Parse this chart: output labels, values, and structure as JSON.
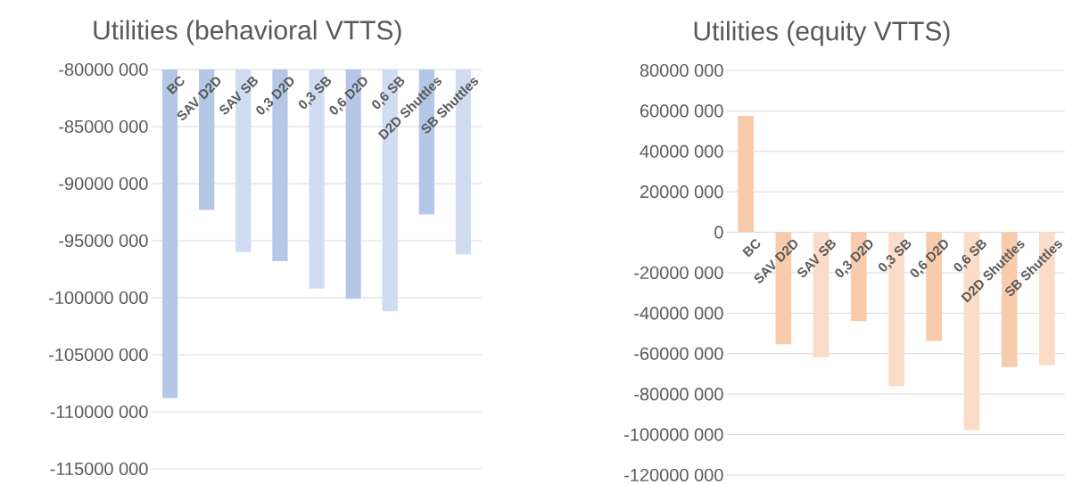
{
  "chart_data": [
    {
      "type": "bar",
      "title": "Utilities (behavioral VTTS)",
      "categories": [
        "BC",
        "SAV D2D",
        "SAV SB",
        "0,3 D2D",
        "0,3 SB",
        "0,6 D2D",
        "0,6 SB",
        "D2D Shuttles",
        "SB Shuttles"
      ],
      "values": [
        -108800000,
        -92300000,
        -96000000,
        -96800000,
        -99200000,
        -100100000,
        -101200000,
        -92700000,
        -96200000
      ],
      "colors": [
        "#b4c7e7",
        "#b4c7e7",
        "#cfdcf1",
        "#b4c7e7",
        "#cfdcf1",
        "#b4c7e7",
        "#cfdcf1",
        "#b4c7e7",
        "#cfdcf1"
      ],
      "ylim": [
        -115000000,
        -80000000
      ],
      "yticks": [
        {
          "value": -115000000,
          "label": "-115000 000"
        },
        {
          "value": -110000000,
          "label": "-110000 000"
        },
        {
          "value": -105000000,
          "label": "-105000 000"
        },
        {
          "value": -100000000,
          "label": "-100000 000"
        },
        {
          "value": -95000000,
          "label": "-95000 000"
        },
        {
          "value": -90000000,
          "label": "-90000 000"
        },
        {
          "value": -85000000,
          "label": "-85000 000"
        },
        {
          "value": -80000000,
          "label": "-80000 000"
        }
      ],
      "grid": "y"
    },
    {
      "type": "bar",
      "title": "Utilities (equity VTTS)",
      "categories": [
        "BC",
        "SAV D2D",
        "SAV SB",
        "0,3 D2D",
        "0,3 SB",
        "0,6 D2D",
        "0,6 SB",
        "D2D Shuttles",
        "SB Shuttles"
      ],
      "values": [
        57500000,
        -55400000,
        -61700000,
        -43900000,
        -75900000,
        -53700000,
        -97800000,
        -66600000,
        -65700000
      ],
      "colors": [
        "#f8cbad",
        "#f8cbad",
        "#fbdcc8",
        "#f8cbad",
        "#fbdcc8",
        "#f8cbad",
        "#fbdcc8",
        "#f8cbad",
        "#fbdcc8"
      ],
      "ylim": [
        -120000000,
        80000000
      ],
      "yticks": [
        {
          "value": -120000000,
          "label": "-120000 000"
        },
        {
          "value": -100000000,
          "label": "-100000 000"
        },
        {
          "value": -80000000,
          "label": "-80000 000"
        },
        {
          "value": -60000000,
          "label": "-60000 000"
        },
        {
          "value": -40000000,
          "label": "-40000 000"
        },
        {
          "value": -20000000,
          "label": "-20000 000"
        },
        {
          "value": 0,
          "label": "0"
        },
        {
          "value": 20000000,
          "label": "20000 000"
        },
        {
          "value": 40000000,
          "label": "40000 000"
        },
        {
          "value": 60000000,
          "label": "60000 000"
        },
        {
          "value": 80000000,
          "label": "80000 000"
        }
      ],
      "grid": "y"
    }
  ]
}
